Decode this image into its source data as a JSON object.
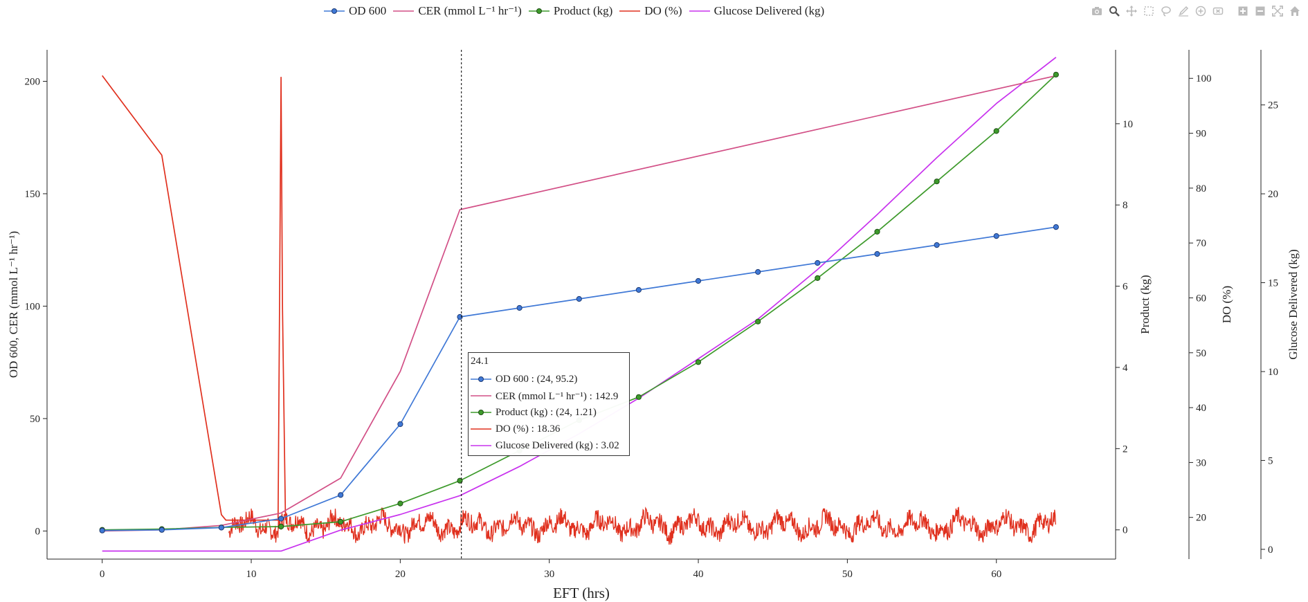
{
  "chart_data": {
    "type": "line",
    "xlabel": "EFT (hrs)",
    "x_ticks": [
      0,
      10,
      20,
      30,
      40,
      50,
      60
    ],
    "xlim": [
      -3.7,
      68
    ],
    "axes": {
      "left": {
        "label": "OD 600, CER (mmol L⁻¹ hr⁻¹)",
        "ticks": [
          0,
          50,
          100,
          150,
          200
        ],
        "ylim": [
          -12.5,
          214
        ]
      },
      "right1": {
        "label": "Product (kg)",
        "ticks": [
          0,
          2,
          4,
          6,
          8,
          10
        ],
        "ylim": [
          -0.72,
          11.82
        ]
      },
      "right2": {
        "label": "DO (%)",
        "ticks": [
          20,
          30,
          40,
          50,
          60,
          70,
          80,
          90,
          100
        ],
        "ylim": [
          12.4,
          105.2
        ]
      },
      "right3": {
        "label": "Glucose Delivered (kg)",
        "ticks": [
          0,
          5,
          10,
          15,
          20,
          25
        ],
        "ylim": [
          -0.55,
          28.1
        ]
      }
    },
    "series": [
      {
        "name": "OD 600",
        "axis": "left",
        "color": "#3f78d6",
        "markers": true,
        "x": [
          0,
          4,
          8,
          12,
          16,
          20,
          24,
          28,
          32,
          36,
          40,
          44,
          48,
          52,
          56,
          60,
          64
        ],
        "y": [
          0.2,
          0.5,
          1.5,
          5.5,
          16,
          47.5,
          95.2,
          99.2,
          103.2,
          107.2,
          111.2,
          115.2,
          119.2,
          123.2,
          127.2,
          131.2,
          135.2
        ]
      },
      {
        "name": "CER (mmol L⁻¹ hr⁻¹)",
        "axis": "left",
        "color": "#d24f86",
        "markers": false,
        "x": [
          0,
          4,
          8,
          12,
          16,
          20,
          24,
          64
        ],
        "y": [
          0,
          0.5,
          2.5,
          8,
          23.5,
          71,
          142.9,
          202.5
        ]
      },
      {
        "name": "Product (kg)",
        "axis": "right1",
        "color": "#3d9a2b",
        "markers": true,
        "x": [
          0,
          4,
          8,
          12,
          16,
          20,
          24,
          28,
          32,
          36,
          40,
          44,
          48,
          52,
          56,
          60,
          64
        ],
        "y": [
          0,
          0.02,
          0.06,
          0.08,
          0.2,
          0.65,
          1.21,
          1.95,
          2.7,
          3.27,
          4.13,
          5.13,
          6.2,
          7.34,
          8.58,
          9.82,
          11.21
        ]
      },
      {
        "name": "DO (%)",
        "axis": "right2",
        "color": "#e0301e",
        "markers": false,
        "x": [
          0,
          4,
          8,
          8.3,
          11.8,
          11.9,
          12.0,
          12.1,
          12.3
        ],
        "y": [
          100.5,
          86,
          20.5,
          19.5,
          19.5,
          58,
          100.2,
          58,
          19.5
        ],
        "noise": {
          "x_start": 8.5,
          "x_end": 64,
          "center": 18.5,
          "amplitude": 2.2
        }
      },
      {
        "name": "Glucose Delivered (kg)",
        "axis": "right3",
        "color": "#c832ee",
        "markers": false,
        "x": [
          0,
          12,
          16,
          20,
          24,
          28,
          32,
          36,
          40,
          44,
          48,
          52,
          56,
          60,
          64
        ],
        "y": [
          -0.1,
          -0.1,
          1.08,
          1.96,
          3.02,
          4.66,
          6.5,
          8.5,
          10.72,
          12.95,
          15.74,
          18.83,
          22.03,
          25.08,
          27.68
        ]
      }
    ],
    "hover": {
      "x": 24.1,
      "title": "24.1",
      "lines": [
        "OD 600 : (24, 95.2)",
        "CER (mmol L⁻¹ hr⁻¹) : 142.9",
        "Product (kg) : (24, 1.21)",
        "DO (%) : 18.36",
        "Glucose Delivered (kg) : 3.02"
      ]
    }
  },
  "modebar": [
    "camera-icon",
    "zoom-icon",
    "pan-icon",
    "box-select-icon",
    "lasso-select-icon",
    "draw-icon",
    "add-shape-icon",
    "erase-shape-icon",
    "zoom-in-icon",
    "zoom-out-icon",
    "autoscale-icon",
    "home-icon"
  ]
}
